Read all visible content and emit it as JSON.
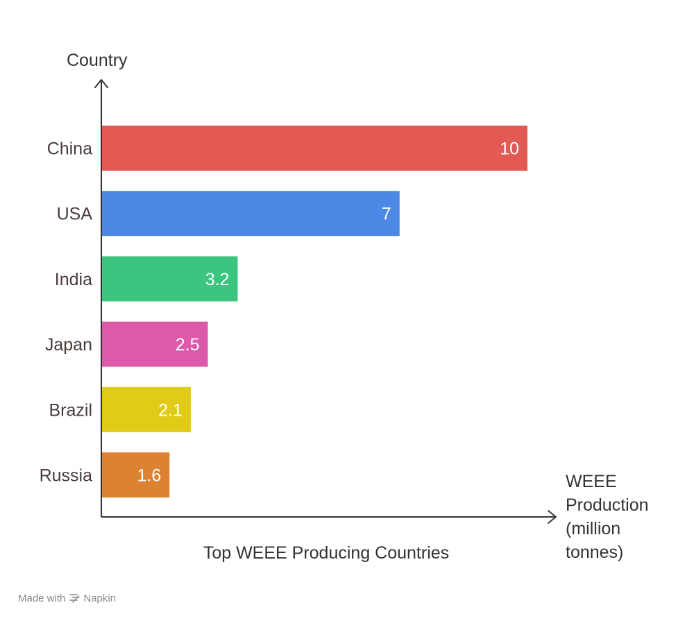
{
  "chart_data": {
    "type": "bar",
    "orientation": "horizontal",
    "title": "Top WEEE Producing Countries",
    "ylabel": "Country",
    "xlabel_lines": [
      "WEEE",
      "Production",
      "(million",
      "tonnes)"
    ],
    "categories": [
      "China",
      "USA",
      "India",
      "Japan",
      "Brazil",
      "Russia"
    ],
    "values": [
      10,
      7,
      3.2,
      2.5,
      2.1,
      1.6
    ],
    "value_labels": [
      "10",
      "7",
      "3.2",
      "2.5",
      "2.1",
      "1.6"
    ],
    "colors": [
      "#e35a55",
      "#4c88e6",
      "#3cc57f",
      "#dd5aaa",
      "#e0cc16",
      "#dd8230"
    ],
    "xlim": [
      0,
      10
    ],
    "grid": false,
    "legend": "none",
    "label_color": "#4a3b3b",
    "axis_color": "#333333"
  },
  "footer": {
    "made_with": "Made with",
    "brand": "Napkin",
    "logo_icon": "napkin-logo-icon"
  }
}
